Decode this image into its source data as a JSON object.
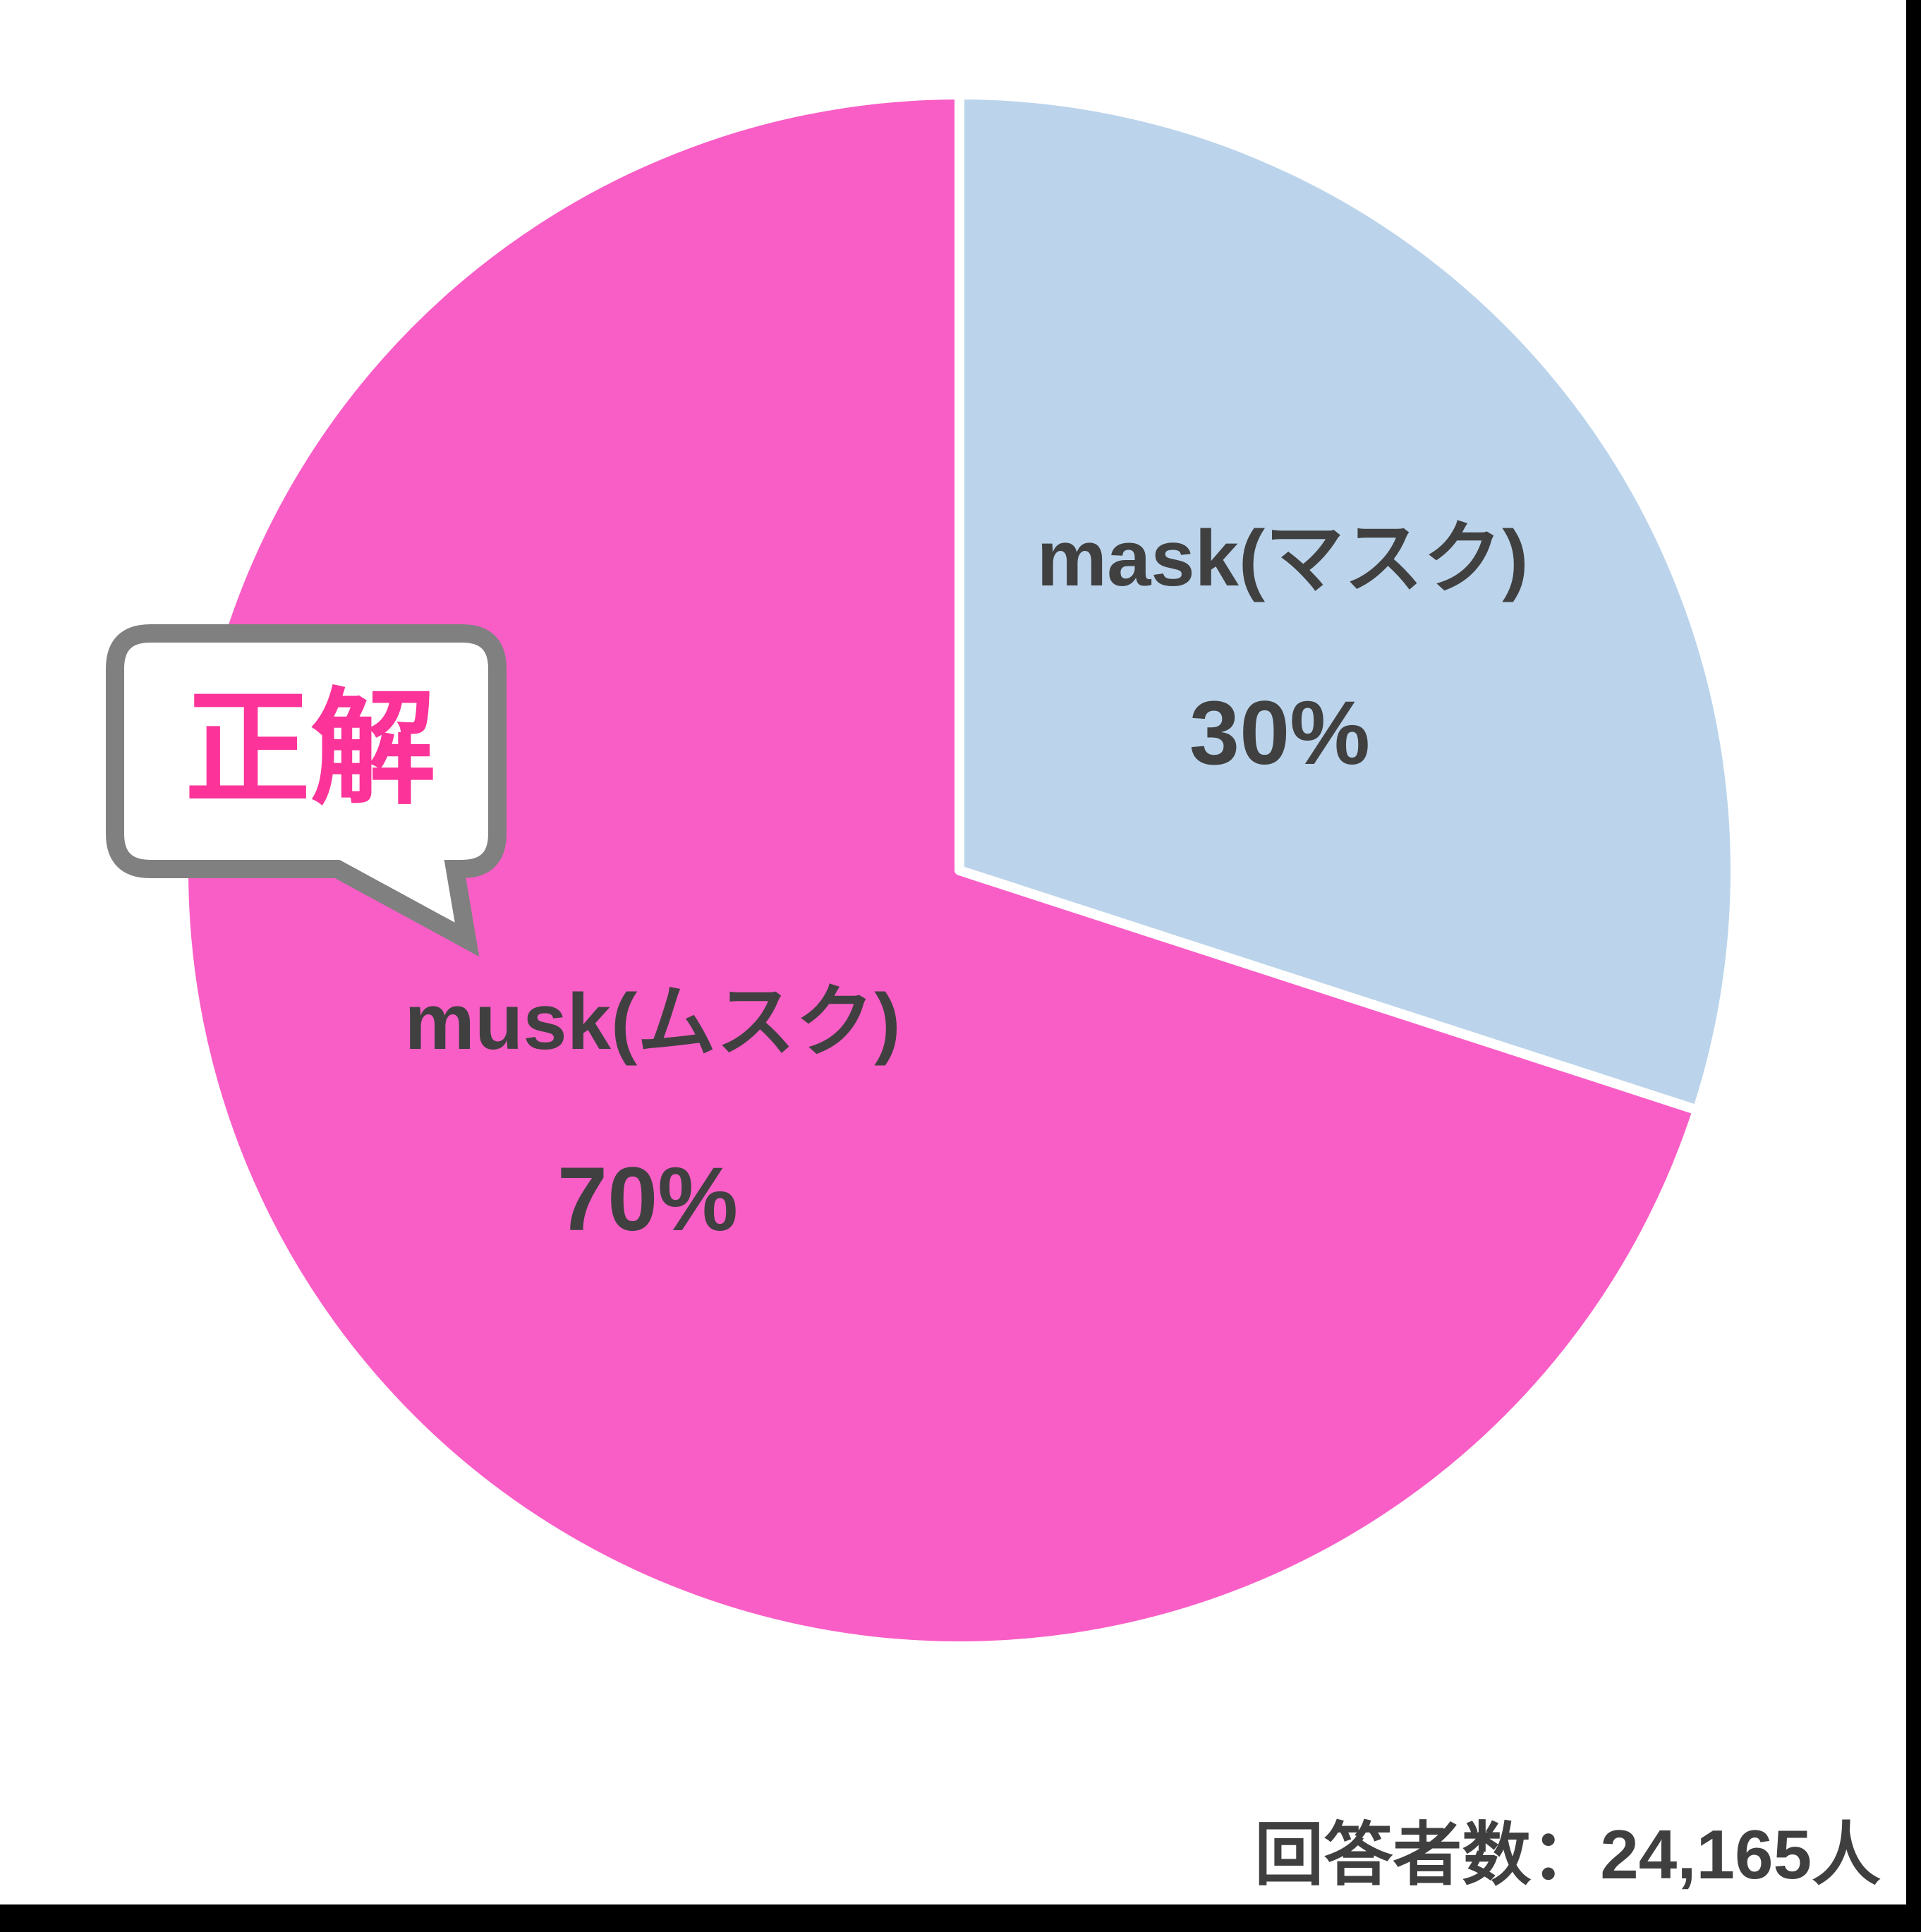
{
  "page": {
    "background": "#000000",
    "canvas_background": "#ffffff"
  },
  "colors": {
    "label_text": "#404040",
    "slice_gap": "#ffffff",
    "bubble_border": "#808080",
    "bubble_fill": "#ffffff",
    "bubble_text": "#fc3398"
  },
  "bubble": {
    "label": "正解"
  },
  "footer": {
    "respondents": "回答者数：24,165人"
  },
  "chart_data": {
    "type": "pie",
    "title": "",
    "start_angle_deg": 0,
    "direction": "clockwise",
    "legend_position": "none",
    "series": [
      {
        "name": "mask(マスク)",
        "value": 30,
        "pct_label": "30%",
        "color": "#bbd4eb"
      },
      {
        "name": "musk(ムスク)",
        "value": 70,
        "pct_label": "70%",
        "color": "#f95ec6"
      }
    ]
  }
}
